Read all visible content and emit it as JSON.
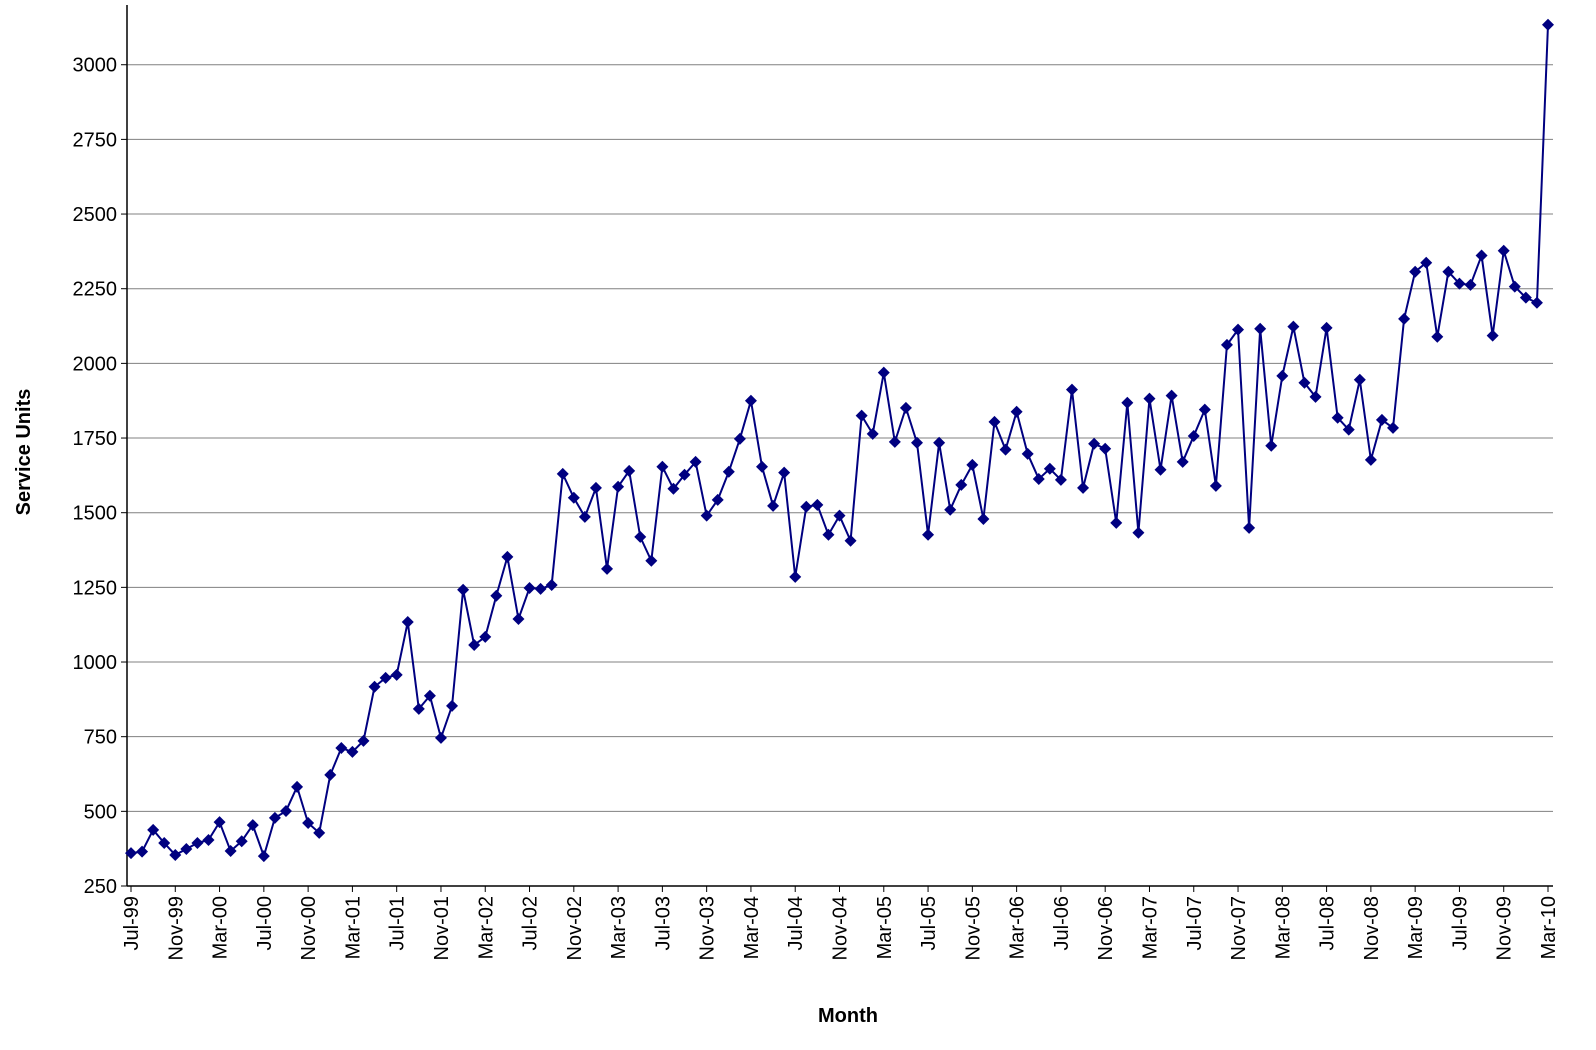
{
  "chart_data": {
    "type": "line",
    "x_label": "Month",
    "y_label": "Service Units",
    "categories": [
      "Jul-99",
      null,
      null,
      null,
      "Nov-99",
      null,
      null,
      null,
      "Mar-00",
      null,
      null,
      null,
      "Jul-00",
      null,
      null,
      null,
      "Nov-00",
      null,
      null,
      null,
      "Mar-01",
      null,
      null,
      null,
      "Jul-01",
      null,
      null,
      null,
      "Nov-01",
      null,
      null,
      null,
      "Mar-02",
      null,
      null,
      null,
      "Jul-02",
      null,
      null,
      null,
      "Nov-02",
      null,
      null,
      null,
      "Mar-03",
      null,
      null,
      null,
      "Jul-03",
      null,
      null,
      null,
      "Nov-03",
      null,
      null,
      null,
      "Mar-04",
      null,
      null,
      null,
      "Jul-04",
      null,
      null,
      null,
      "Nov-04",
      null,
      null,
      null,
      "Mar-05",
      null,
      null,
      null,
      "Jul-05",
      null,
      null,
      null,
      "Nov-05",
      null,
      null,
      null,
      "Mar-06",
      null,
      null,
      null,
      "Jul-06",
      null,
      null,
      null,
      "Nov-06",
      null,
      null,
      null,
      "Mar-07",
      null,
      null,
      null,
      "Jul-07",
      null,
      null,
      null,
      "Nov-07",
      null,
      null,
      null,
      "Mar-08",
      null,
      null,
      null,
      "Jul-08",
      null,
      null,
      null,
      "Nov-08",
      null,
      null,
      null,
      "Mar-09",
      null,
      null,
      null,
      "Jul-09",
      null,
      null,
      null,
      "Nov-09",
      null,
      null,
      null,
      "Mar-10"
    ],
    "series": [
      {
        "color": "#000080",
        "values": [
          360,
          365,
          438,
          394,
          354,
          374,
          394,
          404,
          464,
          367,
          400,
          454,
          350,
          478,
          501,
          582,
          461,
          428,
          622,
          712,
          699,
          736,
          917,
          947,
          957,
          1134,
          843,
          887,
          746,
          853,
          1242,
          1057,
          1084,
          1222,
          1352,
          1144,
          1248,
          1245,
          1258,
          1630,
          1550,
          1486,
          1583,
          1312,
          1587,
          1640,
          1419,
          1339,
          1654,
          1580,
          1627,
          1670,
          1490,
          1543,
          1637,
          1747,
          1875,
          1654,
          1523,
          1634,
          1285,
          1520,
          1526,
          1426,
          1490,
          1406,
          1825,
          1764,
          1969,
          1737,
          1851,
          1734,
          1426,
          1734,
          1510,
          1593,
          1660,
          1479,
          1804,
          1711,
          1838,
          1697,
          1613,
          1647,
          1610,
          1912,
          1583,
          1731,
          1714,
          1466,
          1868,
          1433,
          1882,
          1644,
          1892,
          1670,
          1757,
          1845,
          1590,
          2062,
          2113,
          1449,
          2116,
          1724,
          1958,
          2123,
          1935,
          1888,
          2119,
          1818,
          1778,
          1945,
          1677,
          1811,
          1784,
          2149,
          2307,
          2337,
          2089,
          2307,
          2267,
          2263,
          2361,
          2093,
          2377,
          2257,
          2220,
          2203,
          3134
        ]
      }
    ],
    "ylim": [
      250,
      3200
    ],
    "yticks": [
      250,
      500,
      750,
      1000,
      1250,
      1500,
      1750,
      2000,
      2250,
      2500,
      2750,
      3000
    ],
    "grid": true
  }
}
